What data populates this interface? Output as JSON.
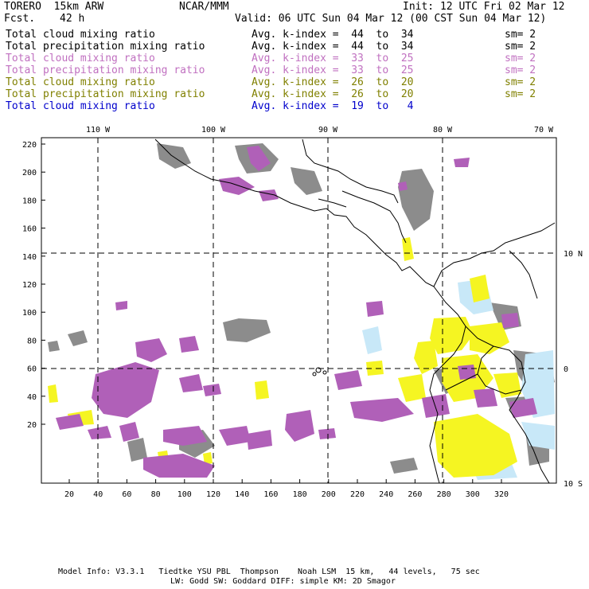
{
  "header": {
    "model": "TORERO  15km ARW",
    "org": "NCAR/MMM",
    "init": "Init: 12 UTC Fri 02 Mar 12",
    "fcst_label": "Fcst.",
    "fcst_value": "42 h",
    "valid": "Valid: 06 UTC Sun 04 Mar 12 (00 CST Sun 04 Mar 12)"
  },
  "legend": [
    {
      "field": "Total cloud mixing ratio",
      "range": "Avg. k-index =  44  to  34",
      "sm": "sm= 2",
      "color": "#000000"
    },
    {
      "field": "Total precipitation mixing ratio",
      "range": "Avg. k-index =  44  to  34",
      "sm": "sm= 2",
      "color": "#000000"
    },
    {
      "field": "Total cloud mixing ratio",
      "range": "Avg. k-index =  33  to  25",
      "sm": "sm= 2",
      "color": "#c070c0"
    },
    {
      "field": "Total precipitation mixing ratio",
      "range": "Avg. k-index =  33  to  25",
      "sm": "sm= 2",
      "color": "#c070c0"
    },
    {
      "field": "Total cloud mixing ratio",
      "range": "Avg. k-index =  26  to  20",
      "sm": "sm= 2",
      "color": "#808000"
    },
    {
      "field": "Total precipitation mixing ratio",
      "range": "Avg. k-index =  26  to  20",
      "sm": "sm= 2",
      "color": "#808000"
    },
    {
      "field": "Total cloud mixing ratio",
      "range": "Avg. k-index =  19  to   4",
      "sm": "",
      "color": "#0000cc"
    }
  ],
  "map": {
    "lon_labels": [
      "110 W",
      "100 W",
      "90 W",
      "80 W",
      "70 W"
    ],
    "lat_labels": [
      "10 N",
      "0",
      "10 S"
    ],
    "y_ticks": [
      "220",
      "200",
      "180",
      "160",
      "140",
      "120",
      "100",
      "80",
      "60",
      "40",
      "20"
    ],
    "x_ticks": [
      "20",
      "40",
      "60",
      "80",
      "100",
      "120",
      "140",
      "160",
      "180",
      "200",
      "220",
      "240",
      "260",
      "280",
      "300",
      "320"
    ],
    "colors": {
      "gray": "#8c8c8c",
      "purple": "#b060b8",
      "yellow": "#f5f522",
      "lightblue": "#c8e8f8"
    }
  },
  "footer": {
    "line1": "Model Info: V3.3.1   Tiedtke YSU PBL  Thompson    Noah LSM  15 km,   44 levels,   75 sec",
    "line2": "LW: Godd SW: Goddard DIFF: simple KM: 2D Smagor"
  }
}
